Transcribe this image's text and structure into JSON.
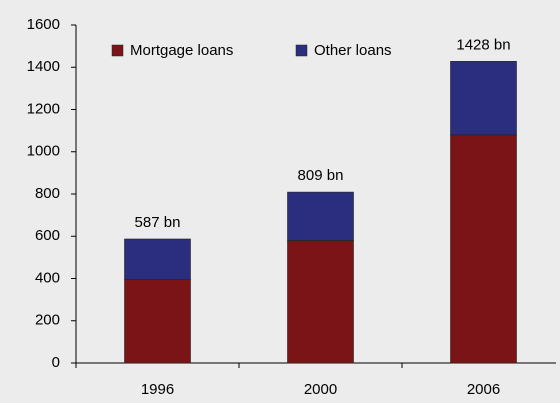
{
  "chart_data": {
    "type": "stacked_bar",
    "categories": [
      "1996",
      "2000",
      "2006"
    ],
    "series": [
      {
        "name": "Mortgage loans",
        "color": "#7b1416",
        "values": [
          395,
          580,
          1080
        ]
      },
      {
        "name": "Other loans",
        "color": "#2b2d7f",
        "values": [
          192,
          229,
          348
        ]
      }
    ],
    "totals": {
      "values": [
        587,
        809,
        1428
      ],
      "value_labels": [
        "587 bn",
        "809 bn",
        "1428 bn"
      ]
    },
    "ylim": [
      0,
      1600
    ],
    "yticks": [
      0,
      200,
      400,
      600,
      800,
      1000,
      1200,
      1400,
      1600
    ],
    "legend": "top"
  }
}
